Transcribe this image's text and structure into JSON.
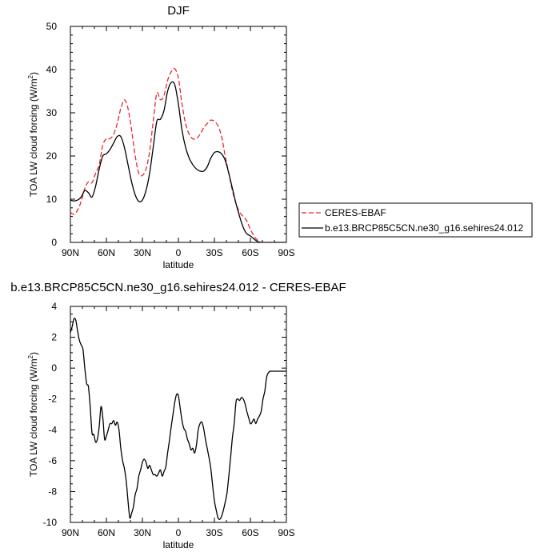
{
  "chart_data": [
    {
      "type": "line",
      "title": "DJF",
      "xlabel": "latitude",
      "ylabel": "TOA LW cloud forcing (W/m",
      "ylabel_sup": "2",
      "ylabel_end": ")",
      "xlim": [
        90,
        -90
      ],
      "ylim": [
        0,
        50
      ],
      "x_ticks": [
        90,
        60,
        30,
        0,
        -30,
        -60,
        -90
      ],
      "x_tick_labels": [
        "90N",
        "60N",
        "30N",
        "0",
        "30S",
        "60S",
        "90S"
      ],
      "y_ticks": [
        0,
        10,
        20,
        30,
        40,
        50
      ],
      "y_tick_labels": [
        "0",
        "10",
        "20",
        "30",
        "40",
        "50"
      ],
      "grid": false,
      "legend_position": "right",
      "series": [
        {
          "name": "CERES-EBAF",
          "color": "#e8262a",
          "dash": "dashed",
          "x": [
            90,
            87,
            84,
            81,
            78,
            75,
            72,
            69,
            66,
            63,
            60,
            57,
            54,
            51,
            48,
            45,
            42,
            39,
            36,
            33,
            30,
            27,
            24,
            21,
            18,
            15,
            12,
            9,
            6,
            3,
            0,
            -3,
            -6,
            -9,
            -12,
            -15,
            -18,
            -21,
            -24,
            -27,
            -30,
            -33,
            -36,
            -39,
            -42,
            -45,
            -48,
            -51,
            -54,
            -57,
            -60,
            -63,
            -66,
            -69,
            -72,
            -75,
            -78,
            -81,
            -84,
            -87,
            -90
          ],
          "y": [
            7,
            6.5,
            7.5,
            9.5,
            12.5,
            14,
            13.8,
            16,
            18,
            22.5,
            24,
            24,
            25,
            27.5,
            31,
            33,
            31,
            26,
            20,
            16,
            15.5,
            17,
            21,
            28,
            34.5,
            33,
            34,
            37.5,
            39.5,
            40.2,
            38,
            32,
            27.5,
            25,
            24,
            24,
            25,
            26.5,
            27.5,
            28.3,
            28,
            27,
            24.5,
            20,
            16,
            12,
            9,
            7,
            6,
            5,
            3,
            1.5,
            0.5,
            0,
            0,
            0,
            0,
            0,
            0,
            0,
            0
          ]
        },
        {
          "name": "b.e13.BRCP85C5CN.ne30_g16.sehires24.012",
          "color": "#000000",
          "dash": "solid",
          "x": [
            90,
            87,
            84,
            81,
            78,
            75,
            72,
            69,
            66,
            63,
            60,
            57,
            54,
            51,
            48,
            45,
            42,
            39,
            36,
            33,
            30,
            27,
            24,
            21,
            18,
            15,
            12,
            9,
            6,
            3,
            0,
            -3,
            -6,
            -9,
            -12,
            -15,
            -18,
            -21,
            -24,
            -27,
            -30,
            -33,
            -36,
            -39,
            -42,
            -45,
            -48,
            -51,
            -54,
            -57,
            -60,
            -63,
            -66,
            -69,
            -72,
            -75,
            -78,
            -81,
            -84,
            -87,
            -90
          ],
          "y": [
            9.8,
            9.6,
            9.8,
            10.5,
            12,
            11.5,
            10.5,
            13,
            17,
            20,
            20.5,
            21.5,
            23,
            24.5,
            24.5,
            22,
            18,
            14,
            11,
            9.5,
            9.8,
            12,
            16,
            22,
            28,
            28.5,
            30.5,
            35,
            37,
            36.5,
            32,
            26,
            22,
            19.5,
            18,
            17,
            16.5,
            16.5,
            17.5,
            19.5,
            20.8,
            21,
            20.5,
            19,
            16,
            12.5,
            9,
            6,
            3.5,
            2,
            1.5,
            0.8,
            0.2,
            0,
            0,
            0,
            0,
            0,
            0,
            0,
            0
          ]
        }
      ]
    },
    {
      "type": "line",
      "title": "b.e13.BRCP85C5CN.ne30_g16.sehires24.012 - CERES-EBAF",
      "xlabel": "latitude",
      "ylabel": "TOA LW cloud forcing (W/m",
      "ylabel_sup": "2",
      "ylabel_end": ")",
      "xlim": [
        90,
        -90
      ],
      "ylim": [
        -10,
        4
      ],
      "x_ticks": [
        90,
        60,
        30,
        0,
        -30,
        -60,
        -90
      ],
      "x_tick_labels": [
        "90N",
        "60N",
        "30N",
        "0",
        "30S",
        "60S",
        "90S"
      ],
      "y_ticks": [
        -10,
        -8,
        -6,
        -4,
        -2,
        0,
        2,
        4
      ],
      "y_tick_labels": [
        "-10",
        "-8",
        "-6",
        "-4",
        "-2",
        "0",
        "2",
        "4"
      ],
      "grid": false,
      "series": [
        {
          "name": "",
          "color": "#000000",
          "dash": "solid",
          "x": [
            90,
            88.5,
            87,
            85.5,
            84,
            82.5,
            81,
            79.5,
            78,
            76.5,
            75,
            73.5,
            72,
            70.5,
            69,
            67.5,
            66,
            64.5,
            63,
            61.5,
            60,
            58.5,
            57,
            55.5,
            54,
            52.5,
            51,
            49.5,
            48,
            46.5,
            45,
            43.5,
            42,
            40.5,
            39,
            37.5,
            36,
            34.5,
            33,
            31.5,
            30,
            28.5,
            27,
            25.5,
            24,
            22.5,
            21,
            19.5,
            18,
            16.5,
            15,
            13.5,
            12,
            10.5,
            9,
            7.5,
            6,
            4.5,
            3,
            1.5,
            0,
            -1.5,
            -3,
            -4.5,
            -6,
            -7.5,
            -9,
            -10.5,
            -12,
            -13.5,
            -15,
            -16.5,
            -18,
            -19.5,
            -21,
            -22.5,
            -24,
            -25.5,
            -27,
            -28.5,
            -30,
            -31.5,
            -33,
            -34.5,
            -36,
            -37.5,
            -39,
            -40.5,
            -42,
            -43.5,
            -45,
            -46.5,
            -48,
            -49.5,
            -51,
            -52.5,
            -54,
            -55.5,
            -57,
            -58.5,
            -60,
            -61.5,
            -63,
            -64.5,
            -66,
            -67.5,
            -69,
            -70.5,
            -72,
            -73.5,
            -75,
            -76.5,
            -78,
            -79.5,
            -81,
            -82.5,
            -84,
            -85.5,
            -87,
            -88.5,
            -90
          ],
          "y": [
            2.3,
            2.7,
            3.2,
            3.1,
            2.4,
            1.8,
            1.5,
            1.2,
            0.0,
            -1.0,
            -1.2,
            -2.5,
            -4.2,
            -4.3,
            -4.8,
            -4.6,
            -3.8,
            -2.5,
            -3.2,
            -4.6,
            -4.4,
            -4.0,
            -3.6,
            -3.6,
            -3.4,
            -3.7,
            -3.5,
            -4.0,
            -5.2,
            -6.0,
            -6.5,
            -7.3,
            -8.6,
            -9.7,
            -9.4,
            -9.0,
            -8.2,
            -7.8,
            -7.0,
            -6.6,
            -6.1,
            -5.9,
            -6.1,
            -6.5,
            -6.3,
            -6.6,
            -6.9,
            -6.9,
            -7.0,
            -6.8,
            -6.6,
            -7.0,
            -6.7,
            -6.4,
            -5.5,
            -4.7,
            -3.8,
            -3.0,
            -2.2,
            -1.7,
            -1.8,
            -2.6,
            -3.4,
            -3.9,
            -4.1,
            -4.6,
            -4.9,
            -5.3,
            -5.2,
            -5.5,
            -5.0,
            -4.0,
            -3.6,
            -3.5,
            -3.9,
            -4.6,
            -5.2,
            -5.8,
            -6.5,
            -7.6,
            -8.6,
            -9.2,
            -9.7,
            -9.8,
            -9.6,
            -9.2,
            -8.7,
            -8.1,
            -7.0,
            -5.8,
            -4.5,
            -3.6,
            -2.2,
            -2.0,
            -2.1,
            -1.9,
            -2.0,
            -2.3,
            -2.8,
            -3.2,
            -3.6,
            -3.5,
            -3.3,
            -3.6,
            -3.3,
            -3.1,
            -2.8,
            -2.0,
            -1.5,
            -0.6,
            -0.3,
            -0.2,
            -0.2,
            -0.2,
            -0.2,
            -0.2,
            -0.2,
            -0.2,
            -0.2,
            -0.2,
            -0.2
          ]
        }
      ]
    }
  ]
}
